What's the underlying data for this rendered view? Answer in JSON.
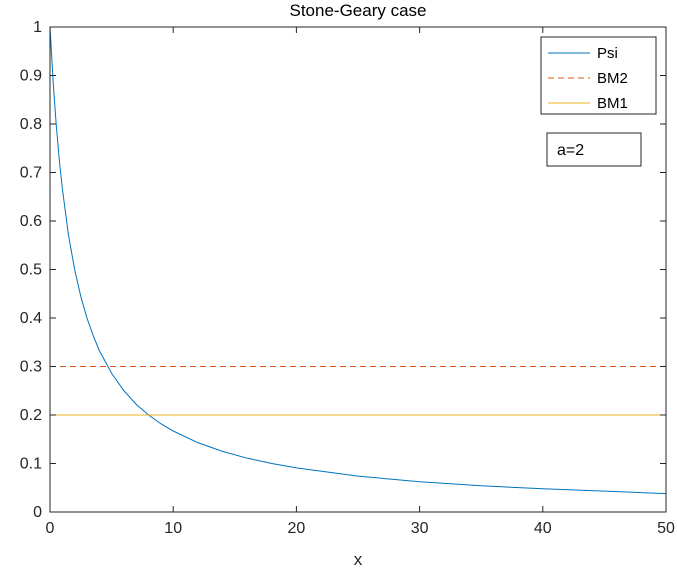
{
  "chart_data": {
    "type": "line",
    "title": "Stone-Geary case",
    "xlabel": "x",
    "ylabel": "",
    "xlim": [
      0,
      50
    ],
    "ylim": [
      0,
      1
    ],
    "xticks": [
      0,
      10,
      20,
      30,
      40,
      50
    ],
    "xtick_labels": [
      "0",
      "10",
      "20",
      "30",
      "40",
      "50"
    ],
    "yticks": [
      0,
      0.1,
      0.2,
      0.3,
      0.4,
      0.5,
      0.6,
      0.7,
      0.8,
      0.9,
      1
    ],
    "ytick_labels": [
      "0",
      "0.1",
      "0.2",
      "0.3",
      "0.4",
      "0.5",
      "0.6",
      "0.7",
      "0.8",
      "0.9",
      "1"
    ],
    "grid": false,
    "legend_position": "top-right",
    "annotation": "a=2",
    "series": [
      {
        "name": "Psi",
        "style": "solid",
        "color": "#0072BD",
        "x": [
          0,
          0.25,
          0.5,
          0.75,
          1,
          1.5,
          2,
          2.5,
          3,
          3.5,
          4,
          5,
          6,
          7,
          8,
          9,
          10,
          12,
          14,
          16,
          18,
          20,
          25,
          30,
          35,
          40,
          45,
          50
        ],
        "y": [
          1,
          0.889,
          0.8,
          0.727,
          0.667,
          0.571,
          0.5,
          0.444,
          0.4,
          0.364,
          0.333,
          0.286,
          0.25,
          0.222,
          0.2,
          0.182,
          0.167,
          0.143,
          0.125,
          0.111,
          0.1,
          0.091,
          0.074,
          0.0625,
          0.054,
          0.048,
          0.043,
          0.038
        ]
      },
      {
        "name": "BM2",
        "style": "dashed",
        "color": "#D95319",
        "x": [
          0,
          50
        ],
        "y": [
          0.3,
          0.3
        ]
      },
      {
        "name": "BM1",
        "style": "solid",
        "color": "#EDB120",
        "x": [
          0,
          50
        ],
        "y": [
          0.2,
          0.2
        ]
      }
    ]
  }
}
